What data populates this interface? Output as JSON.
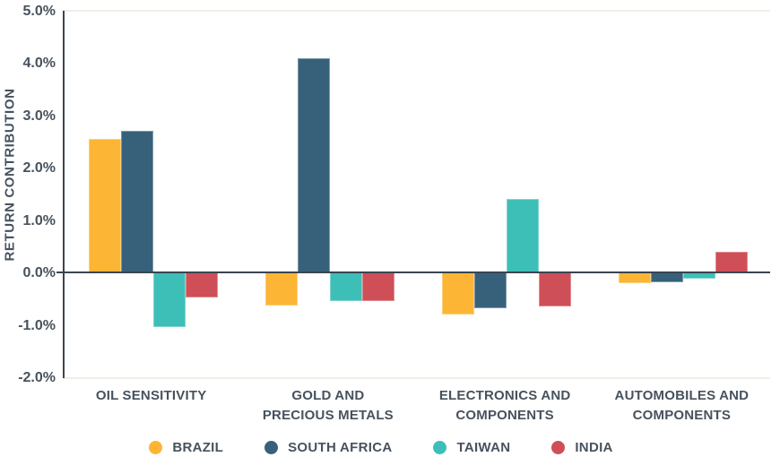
{
  "chart_data": {
    "type": "bar",
    "title": "",
    "xlabel": "",
    "ylabel": "RETURN CONTRIBUTION",
    "ylim": [
      -2.0,
      5.0
    ],
    "yticks": [
      5.0,
      4.0,
      3.0,
      2.0,
      1.0,
      0.0,
      -1.0,
      -2.0
    ],
    "ytick_labels": [
      "5.0%",
      "4.0%",
      "3.0%",
      "2.0%",
      "1.0%",
      "0.0%",
      "-1.0%",
      "-2.0%"
    ],
    "grid": "top-and-bottom-bounds-only",
    "legend_position": "bottom",
    "categories": [
      "OIL SENSITIVITY",
      "GOLD AND PRECIOUS METALS",
      "ELECTRONICS AND COMPONENTS",
      "AUTOMOBILES AND COMPONENTS"
    ],
    "category_label_lines": [
      [
        "OIL SENSITIVITY"
      ],
      [
        "GOLD AND",
        "PRECIOUS METALS"
      ],
      [
        "ELECTRONICS AND",
        "COMPONENTS"
      ],
      [
        "AUTOMOBILES AND",
        "COMPONENTS"
      ]
    ],
    "series": [
      {
        "name": "BRAZIL",
        "color": "#FCB534",
        "values": [
          2.55,
          -0.63,
          -0.8,
          -0.21
        ]
      },
      {
        "name": "SOUTH AFRICA",
        "color": "#37617B",
        "values": [
          2.7,
          4.1,
          -0.68,
          -0.19
        ]
      },
      {
        "name": "TAIWAN",
        "color": "#3DBFB8",
        "values": [
          -1.05,
          -0.55,
          1.4,
          -0.12
        ]
      },
      {
        "name": "INDIA",
        "color": "#CE4F57",
        "values": [
          -0.48,
          -0.54,
          -0.64,
          0.4
        ]
      }
    ]
  },
  "colors": {
    "text": "#47525D",
    "axis_line": "#3A4551",
    "faint_gridline": "#F1EEE8",
    "background": "#FFFFFF"
  }
}
